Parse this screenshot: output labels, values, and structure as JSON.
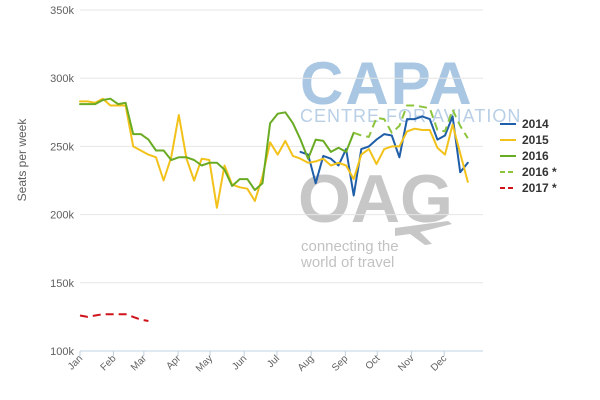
{
  "watermarks": {
    "capa_logo": "CAPA",
    "capa_sub": "CENTRE FOR AVIATION",
    "oag_logo": "OAG",
    "oag_tagline_1": "connecting the",
    "oag_tagline_2": "world of travel"
  },
  "chart_data": {
    "type": "line",
    "title": "",
    "xlabel": "",
    "ylabel": "Seats per week",
    "x_domain_weeks": [
      0,
      53
    ],
    "ylim": [
      100000,
      350000
    ],
    "yticks": [
      100000,
      150000,
      200000,
      250000,
      300000,
      350000
    ],
    "ytick_labels": [
      "100k",
      "150k",
      "200k",
      "250k",
      "300k",
      "350k"
    ],
    "xticks": [
      {
        "label": "Jan",
        "week": 0
      },
      {
        "label": "Feb",
        "week": 4.4
      },
      {
        "label": "Mar",
        "week": 8.4
      },
      {
        "label": "Apr",
        "week": 12.9
      },
      {
        "label": "May",
        "week": 17.1
      },
      {
        "label": "Jun",
        "week": 21.6
      },
      {
        "label": "Jul",
        "week": 25.9
      },
      {
        "label": "Aug",
        "week": 30.4
      },
      {
        "label": "Sep",
        "week": 34.9
      },
      {
        "label": "Oct",
        "week": 39.1
      },
      {
        "label": "Nov",
        "week": 43.6
      },
      {
        "label": "Dec",
        "week": 47.9
      }
    ],
    "grid": "horizontal",
    "legend": "right",
    "series": [
      {
        "name": "2014",
        "color": "#1f5ea8",
        "dash": "solid",
        "points": [
          [
            29,
            246
          ],
          [
            30,
            244
          ],
          [
            31,
            223
          ],
          [
            32,
            243
          ],
          [
            33,
            241
          ],
          [
            34,
            236
          ],
          [
            35,
            248
          ],
          [
            36,
            214
          ],
          [
            37,
            248
          ],
          [
            38,
            250
          ],
          [
            39,
            255
          ],
          [
            40,
            259
          ],
          [
            41,
            258
          ],
          [
            42,
            242
          ],
          [
            43,
            270
          ],
          [
            44,
            270
          ],
          [
            45,
            272
          ],
          [
            46,
            270
          ],
          [
            47,
            255
          ],
          [
            48,
            258
          ],
          [
            49,
            272
          ],
          [
            50,
            231
          ],
          [
            51,
            238
          ]
        ]
      },
      {
        "name": "2015",
        "color": "#f2c21b",
        "dash": "solid",
        "points": [
          [
            0,
            283
          ],
          [
            1,
            283
          ],
          [
            2,
            282
          ],
          [
            3,
            285
          ],
          [
            4,
            280
          ],
          [
            5,
            280
          ],
          [
            6,
            280
          ],
          [
            7,
            250
          ],
          [
            8,
            247
          ],
          [
            9,
            244
          ],
          [
            10,
            242
          ],
          [
            11,
            225
          ],
          [
            12,
            242
          ],
          [
            13,
            273
          ],
          [
            14,
            241
          ],
          [
            15,
            225
          ],
          [
            16,
            241
          ],
          [
            17,
            240
          ],
          [
            18,
            205
          ],
          [
            19,
            236
          ],
          [
            20,
            222
          ],
          [
            21,
            220
          ],
          [
            22,
            219
          ],
          [
            23,
            210
          ],
          [
            24,
            228
          ],
          [
            25,
            253
          ],
          [
            26,
            244
          ],
          [
            27,
            254
          ],
          [
            28,
            243
          ],
          [
            29,
            241
          ],
          [
            30,
            238
          ],
          [
            31,
            239
          ],
          [
            32,
            241
          ],
          [
            33,
            236
          ],
          [
            34,
            238
          ],
          [
            35,
            236
          ],
          [
            36,
            226
          ],
          [
            37,
            244
          ],
          [
            38,
            248
          ],
          [
            39,
            237
          ],
          [
            40,
            248
          ],
          [
            41,
            250
          ],
          [
            42,
            250
          ],
          [
            43,
            261
          ],
          [
            44,
            263
          ],
          [
            45,
            262
          ],
          [
            46,
            262
          ],
          [
            47,
            249
          ],
          [
            48,
            244
          ],
          [
            49,
            266
          ],
          [
            50,
            245
          ],
          [
            51,
            224
          ]
        ]
      },
      {
        "name": "2016",
        "color": "#6aab24",
        "dash": "solid",
        "points": [
          [
            0,
            281
          ],
          [
            1,
            281
          ],
          [
            2,
            281
          ],
          [
            3,
            284
          ],
          [
            4,
            285
          ],
          [
            5,
            281
          ],
          [
            6,
            282
          ],
          [
            7,
            259
          ],
          [
            8,
            259
          ],
          [
            9,
            255
          ],
          [
            10,
            247
          ],
          [
            11,
            247
          ],
          [
            12,
            240
          ],
          [
            13,
            242
          ],
          [
            14,
            242
          ],
          [
            15,
            240
          ],
          [
            16,
            236
          ],
          [
            17,
            238
          ],
          [
            18,
            238
          ],
          [
            19,
            233
          ],
          [
            20,
            221
          ],
          [
            21,
            226
          ],
          [
            22,
            226
          ],
          [
            23,
            218
          ],
          [
            24,
            223
          ],
          [
            25,
            267
          ],
          [
            26,
            274
          ],
          [
            27,
            275
          ],
          [
            28,
            267
          ],
          [
            29,
            255
          ],
          [
            30,
            241
          ],
          [
            31,
            255
          ],
          [
            32,
            254
          ],
          [
            33,
            246
          ],
          [
            34,
            249
          ],
          [
            35,
            246
          ],
          [
            36,
            260
          ]
        ]
      },
      {
        "name": "2016 *",
        "color": "#8cc43c",
        "dash": "dashed",
        "points": [
          [
            36,
            260
          ],
          [
            37,
            258
          ],
          [
            38,
            257
          ],
          [
            39,
            271
          ],
          [
            40,
            270
          ],
          [
            41,
            260
          ],
          [
            42,
            265
          ],
          [
            43,
            280
          ],
          [
            44,
            280
          ],
          [
            45,
            279
          ],
          [
            46,
            278
          ],
          [
            47,
            262
          ],
          [
            48,
            261
          ],
          [
            49,
            277
          ],
          [
            50,
            265
          ],
          [
            51,
            256
          ]
        ]
      },
      {
        "name": "2017 *",
        "color": "#d0121b",
        "dash": "dashed",
        "points": [
          [
            0,
            126
          ],
          [
            1,
            125
          ],
          [
            2,
            126
          ],
          [
            3,
            127
          ],
          [
            4,
            127
          ],
          [
            5,
            127
          ],
          [
            6,
            127
          ],
          [
            7,
            125
          ],
          [
            8,
            123
          ],
          [
            9,
            122
          ]
        ]
      }
    ]
  }
}
